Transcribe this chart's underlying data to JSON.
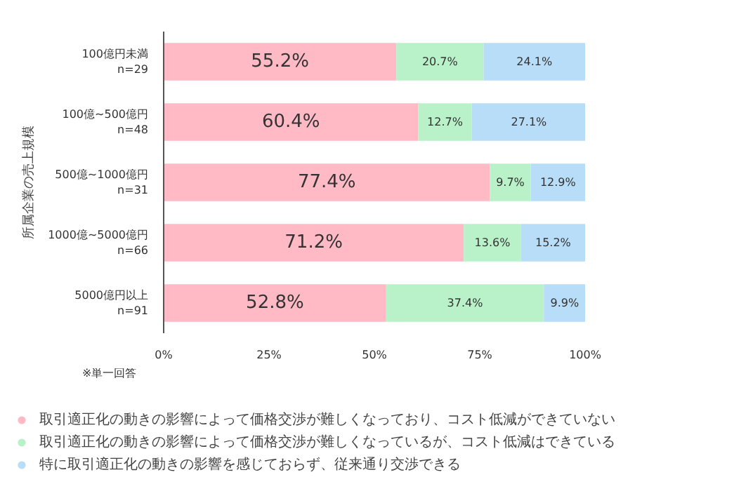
{
  "chart_data": {
    "type": "bar",
    "orientation": "horizontal",
    "stacked": true,
    "ylabel": "所属企業の売上規模",
    "categories": [
      "100億円未満\nn=29",
      "100億~500億円\nn=48",
      "500億~1000億円\nn=31",
      "1000億~5000億円\nn=66",
      "5000億円以上\nn=91"
    ],
    "series": [
      {
        "name": "取引適正化の動きの影響によって価格交渉が難しくなっており、コスト低減ができていない",
        "color": "#ffbac6",
        "values": [
          55.2,
          60.4,
          77.4,
          71.2,
          52.8
        ],
        "value_labels": [
          "55.2%",
          "60.4%",
          "77.4%",
          "71.2%",
          "52.8%"
        ]
      },
      {
        "name": "取引適正化の動きの影響によって価格交渉が難しくなっているが、コスト低減はできている",
        "color": "#b9f2c9",
        "values": [
          20.7,
          12.7,
          9.7,
          13.6,
          37.4
        ],
        "value_labels": [
          "20.7%",
          "12.7%",
          "9.7%",
          "13.6%",
          "37.4%"
        ]
      },
      {
        "name": "特に取引適正化の動きの影響を感じておらず、従来通り交渉できる",
        "color": "#b8ddf8",
        "values": [
          24.1,
          27.1,
          12.9,
          15.2,
          9.9
        ],
        "value_labels": [
          "24.1%",
          "27.1%",
          "12.9%",
          "15.2%",
          "9.9%"
        ]
      }
    ],
    "xlim": [
      0,
      100
    ],
    "xticks": [
      {
        "value": 0,
        "label": "0%"
      },
      {
        "value": 25,
        "label": "25%"
      },
      {
        "value": 50,
        "label": "50%"
      },
      {
        "value": 75,
        "label": "75%"
      },
      {
        "value": 100,
        "label": "100%"
      }
    ],
    "legend": "bottom",
    "annotations": [
      "※単一回答"
    ]
  }
}
